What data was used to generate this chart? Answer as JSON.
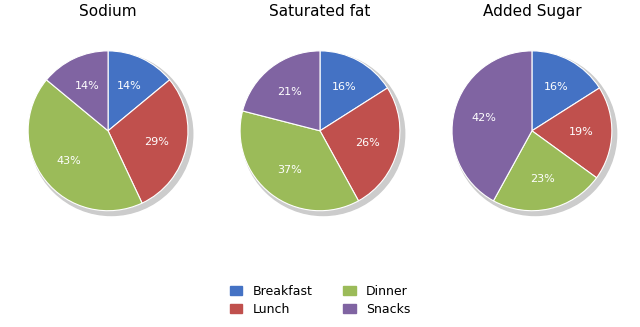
{
  "charts": [
    {
      "title": "Sodium",
      "values": [
        14,
        29,
        43,
        14
      ],
      "labels": [
        "Breakfast",
        "Lunch",
        "Dinner",
        "Snacks"
      ],
      "startangle": 90
    },
    {
      "title": "Saturated fat",
      "values": [
        16,
        26,
        37,
        21
      ],
      "labels": [
        "Breakfast",
        "Lunch",
        "Dinner",
        "Snacks"
      ],
      "startangle": 90
    },
    {
      "title": "Added Sugar",
      "values": [
        16,
        19,
        23,
        42
      ],
      "labels": [
        "Breakfast",
        "Lunch",
        "Dinner",
        "Snacks"
      ],
      "startangle": 90
    }
  ],
  "colors": {
    "Breakfast": "#4472C4",
    "Lunch": "#C0504D",
    "Dinner": "#9BBB59",
    "Snacks": "#8064A2"
  },
  "legend_labels": [
    "Breakfast",
    "Lunch",
    "Dinner",
    "Snacks"
  ],
  "background_color": "#FFFFFF",
  "text_color": "#FFFFFF",
  "label_fontsize": 8,
  "title_fontsize": 11
}
